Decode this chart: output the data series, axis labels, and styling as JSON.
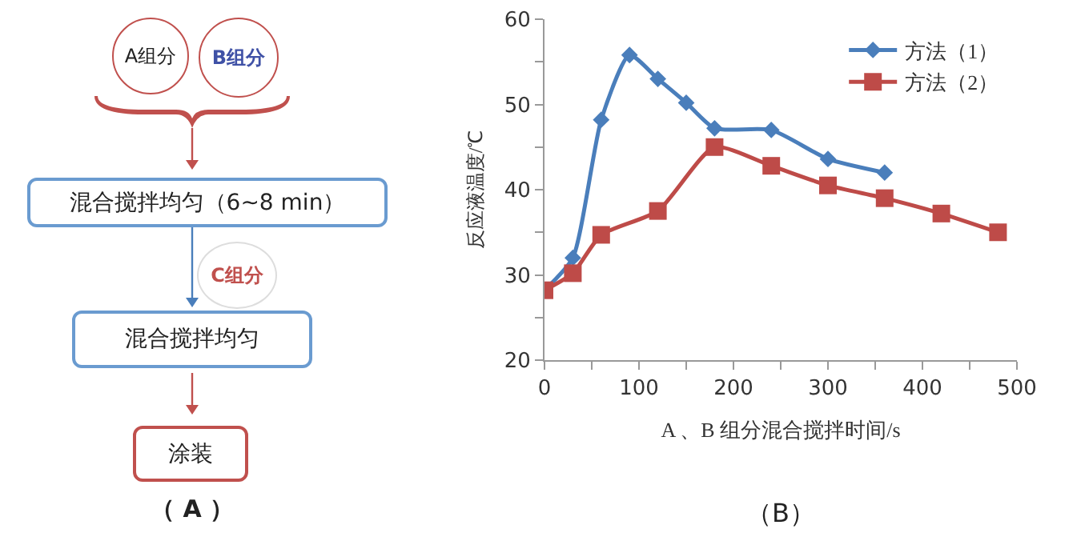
{
  "chart_data": [
    {
      "type": "other",
      "annotations": [
        "A组分",
        "B组分",
        "混合搅拌均匀（6~8 min）",
        "C组分",
        "混合搅拌均匀",
        "涂装",
        "（ A ）"
      ]
    },
    {
      "type": "line",
      "ylabel": "反应液温度/℃",
      "xlabel": "A 、B 组分混合搅拌时间/s",
      "annotations": [
        "（B）"
      ],
      "series": [
        {
          "name": "方法（1）",
          "color": "#4a7ebb",
          "marker": "diamond",
          "x": [
            0,
            30,
            60,
            90,
            120,
            150,
            180,
            240,
            300,
            360
          ],
          "values": [
            28.2,
            32,
            48.2,
            55.8,
            53,
            50.2,
            47.2,
            47,
            43.6,
            42
          ]
        },
        {
          "name": "方法（2）",
          "color": "#be4b48",
          "marker": "square",
          "x": [
            0,
            30,
            60,
            120,
            180,
            240,
            300,
            360,
            420,
            480
          ],
          "values": [
            28.2,
            30.2,
            34.7,
            37.5,
            45,
            42.8,
            40.5,
            39,
            37.2,
            35
          ]
        }
      ],
      "xlim": [
        0,
        500
      ],
      "xticks": [
        0,
        {
          "value": 50,
          "label": null
        },
        100,
        {
          "value": 150,
          "label": null
        },
        200,
        {
          "value": 250,
          "label": null
        },
        300,
        {
          "value": 350,
          "label": null
        },
        400,
        {
          "value": 450,
          "label": null
        },
        500
      ],
      "ylim": [
        20,
        60
      ],
      "yticks": [
        20,
        {
          "value": 25,
          "label": null
        },
        30,
        {
          "value": 35,
          "label": null
        },
        40,
        {
          "value": 45,
          "label": null
        },
        50,
        {
          "value": 55,
          "label": null
        },
        60
      ],
      "grid": false,
      "legend": "top right",
      "line_style": "solid"
    }
  ]
}
